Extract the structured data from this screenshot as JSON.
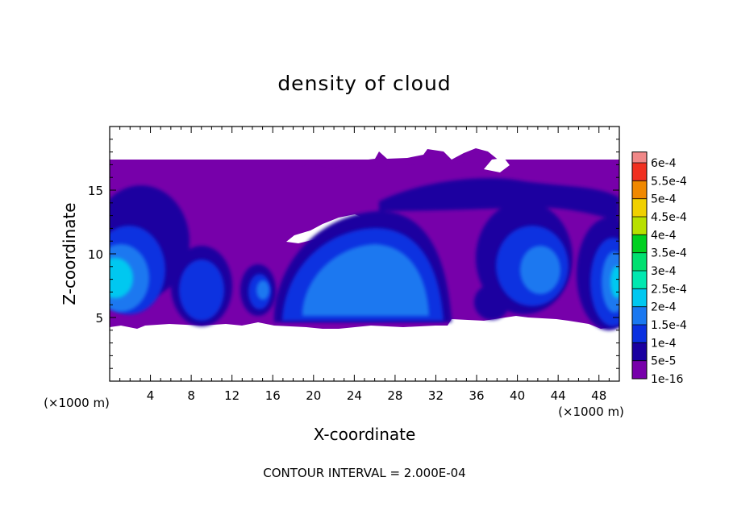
{
  "chart_data": {
    "type": "heatmap",
    "title": "density of cloud",
    "xlabel": "X-coordinate",
    "ylabel": "Z-coordinate",
    "x_unit_label": "(×1000 m)",
    "y_unit_label": "(×1000 m)",
    "xlim": [
      0,
      50
    ],
    "ylim": [
      0,
      20
    ],
    "x_ticks": [
      4,
      8,
      12,
      16,
      20,
      24,
      28,
      32,
      36,
      40,
      44,
      48
    ],
    "y_ticks": [
      5,
      10,
      15
    ],
    "footer": "CONTOUR INTERVAL = 2.000E-04",
    "colorbar": {
      "levels": [
        "1e-16",
        "5e-5",
        "1e-4",
        "1.5e-4",
        "2e-4",
        "2.5e-4",
        "3e-4",
        "3.5e-4",
        "4e-4",
        "4.5e-4",
        "5e-4",
        "5.5e-4",
        "6e-4"
      ],
      "colors": [
        "#7700aa",
        "#1a00a0",
        "#0a30e0",
        "#1a78f0",
        "#00c8f0",
        "#00e8b0",
        "#00e070",
        "#00d020",
        "#b8e000",
        "#f0d000",
        "#f08800",
        "#f03020",
        "#f08888"
      ]
    },
    "cloud_field": {
      "domain_x": [
        0,
        50
      ],
      "z_bottom_approx": 4.2,
      "z_top_approx": 17.3,
      "features": [
        {
          "name": "left cell",
          "x_center": 1.5,
          "z_center": 8.5,
          "peak": "2e-4"
        },
        {
          "name": "cell near x=8",
          "x_center": 8.5,
          "z_center": 7.0,
          "peak": "1e-4"
        },
        {
          "name": "small cell near x=15",
          "x_center": 15.0,
          "z_center": 7.8,
          "peak": "1.5e-4"
        },
        {
          "name": "main cell",
          "x_center": 25.0,
          "z_center": 9.0,
          "peak": "1.5e-4"
        },
        {
          "name": "cell near x=41",
          "x_center": 41.0,
          "z_center": 9.5,
          "peak": "1e-4"
        },
        {
          "name": "right cell",
          "x_center": 49.5,
          "z_center": 8.0,
          "peak": "2e-4"
        },
        {
          "name": "upper band",
          "x_center": 36.0,
          "z_center": 14.5,
          "peak": "5e-5"
        }
      ]
    }
  }
}
